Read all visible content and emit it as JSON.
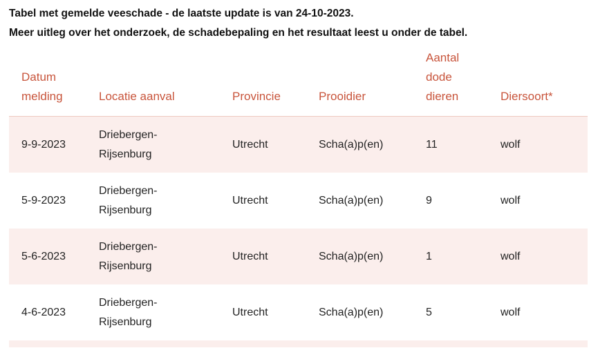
{
  "intro": {
    "line1": "Tabel met gemelde veeschade - de laatste update is van 24-10-2023.",
    "line2": "Meer uitleg over het onderzoek, de schadebepaling en het resultaat leest u onder de tabel."
  },
  "table": {
    "headers": [
      "Datum melding",
      "Locatie aanval",
      "Provincie",
      "Prooidier",
      "Aantal dode dieren",
      "Diersoort*"
    ],
    "rows": [
      [
        "9-9-2023",
        "Driebergen-Rijsenburg",
        "Utrecht",
        "Scha(a)p(en)",
        "11",
        "wolf"
      ],
      [
        "5-9-2023",
        "Driebergen-Rijsenburg",
        "Utrecht",
        "Scha(a)p(en)",
        "9",
        "wolf"
      ],
      [
        "5-6-2023",
        "Driebergen-Rijsenburg",
        "Utrecht",
        "Scha(a)p(en)",
        "1",
        "wolf"
      ],
      [
        "4-6-2023",
        "Driebergen-Rijsenburg",
        "Utrecht",
        "Scha(a)p(en)",
        "5",
        "wolf"
      ]
    ]
  },
  "colors": {
    "header_text": "#c8543b",
    "row_alt_bg": "#fbeeec"
  }
}
